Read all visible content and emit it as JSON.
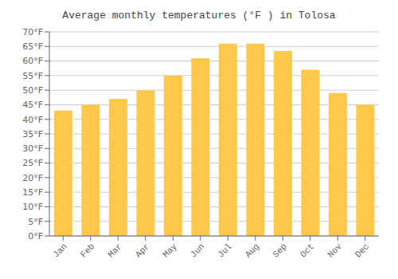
{
  "chart_data": {
    "type": "bar",
    "title": "Average monthly temperatures (°F ) in Tolosa",
    "categories": [
      "Jan",
      "Feb",
      "Mar",
      "Apr",
      "May",
      "Jun",
      "Jul",
      "Aug",
      "Sep",
      "Oct",
      "Nov",
      "Dec"
    ],
    "values": [
      43,
      45,
      47,
      50,
      55,
      61,
      66,
      66,
      63.5,
      57,
      49,
      45
    ],
    "color": "#FFC84A",
    "ylim": [
      0,
      70
    ],
    "yticks": [
      {
        "value": 0,
        "label": "0°F"
      },
      {
        "value": 5,
        "label": "5°F"
      },
      {
        "value": 10,
        "label": "10°F"
      },
      {
        "value": 15,
        "label": "15°F"
      },
      {
        "value": 20,
        "label": "20°F"
      },
      {
        "value": 25,
        "label": "25°F"
      },
      {
        "value": 30,
        "label": "30°F"
      },
      {
        "value": 35,
        "label": "35°F"
      },
      {
        "value": 40,
        "label": "40°F"
      },
      {
        "value": 45,
        "label": "45°F"
      },
      {
        "value": 50,
        "label": "50°F"
      },
      {
        "value": 55,
        "label": "55°F"
      },
      {
        "value": 60,
        "label": "60°F"
      },
      {
        "value": 65,
        "label": "65°F"
      },
      {
        "value": 70,
        "label": "70°F"
      }
    ],
    "grid": true
  }
}
